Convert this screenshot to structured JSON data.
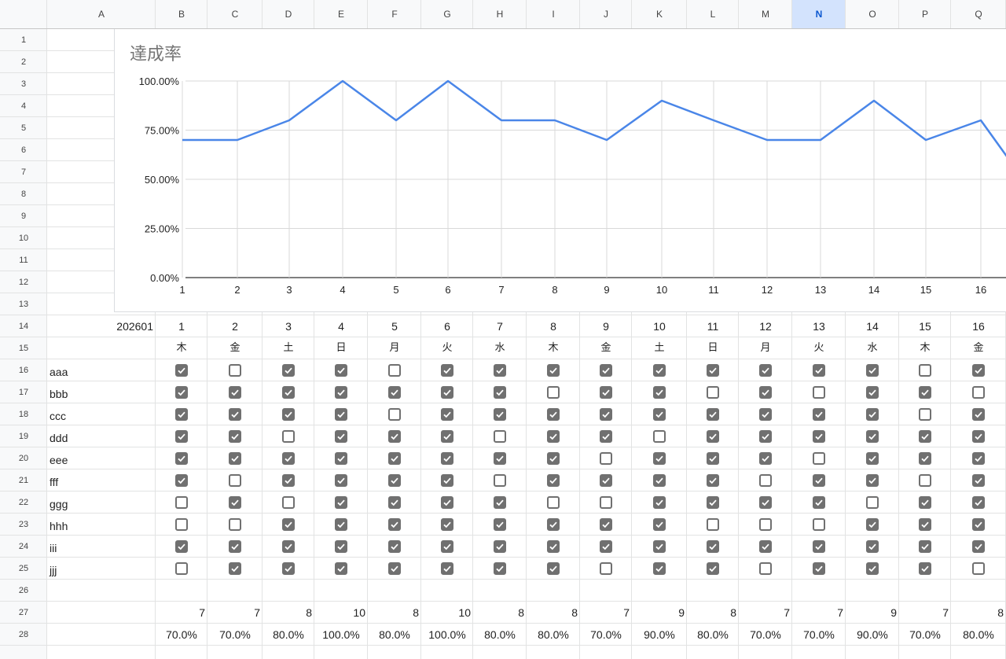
{
  "columns": [
    "A",
    "B",
    "C",
    "D",
    "E",
    "F",
    "G",
    "H",
    "I",
    "J",
    "K",
    "L",
    "M",
    "N",
    "O",
    "P",
    "Q"
  ],
  "selected_column": "N",
  "row_numbers": [
    "1",
    "2",
    "3",
    "4",
    "5",
    "6",
    "7",
    "8",
    "9",
    "10",
    "11",
    "12",
    "13",
    "14",
    "15",
    "16",
    "17",
    "18",
    "19",
    "20",
    "21",
    "22",
    "23",
    "24",
    "25",
    "26",
    "27",
    "28"
  ],
  "month_label": "202601",
  "days": [
    "1",
    "2",
    "3",
    "4",
    "5",
    "6",
    "7",
    "8",
    "9",
    "10",
    "11",
    "12",
    "13",
    "14",
    "15",
    "16"
  ],
  "weekdays": [
    "木",
    "金",
    "土",
    "日",
    "月",
    "火",
    "水",
    "木",
    "金",
    "土",
    "日",
    "月",
    "火",
    "水",
    "木",
    "金"
  ],
  "people": [
    {
      "name": "aaa",
      "checks": [
        1,
        0,
        1,
        1,
        0,
        1,
        1,
        1,
        1,
        1,
        1,
        1,
        1,
        1,
        0,
        1
      ]
    },
    {
      "name": "bbb",
      "checks": [
        1,
        1,
        1,
        1,
        1,
        1,
        1,
        0,
        1,
        1,
        0,
        1,
        0,
        1,
        1,
        0
      ]
    },
    {
      "name": "ccc",
      "checks": [
        1,
        1,
        1,
        1,
        0,
        1,
        1,
        1,
        1,
        1,
        1,
        1,
        1,
        1,
        0,
        1
      ]
    },
    {
      "name": "ddd",
      "checks": [
        1,
        1,
        0,
        1,
        1,
        1,
        0,
        1,
        1,
        0,
        1,
        1,
        1,
        1,
        1,
        1
      ]
    },
    {
      "name": "eee",
      "checks": [
        1,
        1,
        1,
        1,
        1,
        1,
        1,
        1,
        0,
        1,
        1,
        1,
        0,
        1,
        1,
        1
      ]
    },
    {
      "name": "fff",
      "checks": [
        1,
        0,
        1,
        1,
        1,
        1,
        0,
        1,
        1,
        1,
        1,
        0,
        1,
        1,
        0,
        1
      ]
    },
    {
      "name": "ggg",
      "checks": [
        0,
        1,
        0,
        1,
        1,
        1,
        1,
        0,
        0,
        1,
        1,
        1,
        1,
        0,
        1,
        1
      ]
    },
    {
      "name": "hhh",
      "checks": [
        0,
        0,
        1,
        1,
        1,
        1,
        1,
        1,
        1,
        1,
        0,
        0,
        0,
        1,
        1,
        1
      ]
    },
    {
      "name": "iii",
      "checks": [
        1,
        1,
        1,
        1,
        1,
        1,
        1,
        1,
        1,
        1,
        1,
        1,
        1,
        1,
        1,
        1
      ]
    },
    {
      "name": "jjj",
      "checks": [
        0,
        1,
        1,
        1,
        1,
        1,
        1,
        1,
        0,
        1,
        1,
        0,
        1,
        1,
        1,
        0
      ]
    }
  ],
  "totals": [
    "7",
    "7",
    "8",
    "10",
    "8",
    "10",
    "8",
    "8",
    "7",
    "9",
    "8",
    "7",
    "7",
    "9",
    "7",
    "8"
  ],
  "rates": [
    "70.0%",
    "70.0%",
    "80.0%",
    "100.0%",
    "80.0%",
    "100.0%",
    "80.0%",
    "80.0%",
    "70.0%",
    "90.0%",
    "80.0%",
    "70.0%",
    "70.0%",
    "90.0%",
    "70.0%",
    "80.0%"
  ],
  "colors": {
    "line": "#4a86e8",
    "grid": "#e2e3e3",
    "checkbox": "#707070",
    "header_bg": "#f8f9fa",
    "selected_header": "#d3e3fd"
  },
  "chart_data": {
    "type": "line",
    "title": "達成率",
    "x": [
      1,
      2,
      3,
      4,
      5,
      6,
      7,
      8,
      9,
      10,
      11,
      12,
      13,
      14,
      15,
      16,
      17
    ],
    "x_tick_labels": [
      "1",
      "2",
      "3",
      "4",
      "5",
      "6",
      "7",
      "8",
      "9",
      "10",
      "11",
      "12",
      "13",
      "14",
      "15",
      "16"
    ],
    "series": [
      {
        "values": [
          70,
          70,
          80,
          100,
          80,
          100,
          80,
          80,
          70,
          90,
          80,
          70,
          70,
          90,
          70,
          80,
          60
        ]
      }
    ],
    "y_tick_labels": [
      "100.00%",
      "75.00%",
      "50.00%",
      "25.00%",
      "0.00%"
    ],
    "ylim": [
      0,
      100
    ],
    "grid": true,
    "legend": "none"
  }
}
